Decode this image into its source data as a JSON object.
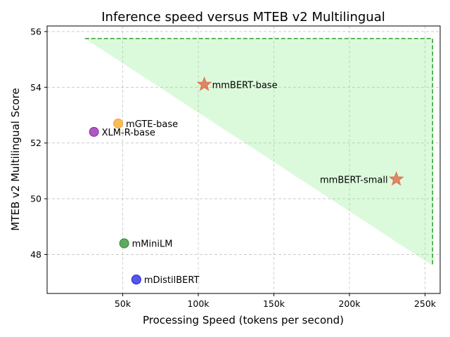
{
  "chart_data": {
    "type": "scatter",
    "title": "Inference speed versus MTEB v2 Multilingual",
    "xlabel": "Processing Speed (tokens per second)",
    "ylabel": "MTEB v2 Multilingual Score",
    "xlim": [
      0,
      260000
    ],
    "ylim": [
      46.6,
      56.2
    ],
    "xticks": [
      {
        "value": 50000,
        "label": "50k"
      },
      {
        "value": 100000,
        "label": "100k"
      },
      {
        "value": 150000,
        "label": "150k"
      },
      {
        "value": 200000,
        "label": "200k"
      },
      {
        "value": 250000,
        "label": "250k"
      }
    ],
    "yticks": [
      {
        "value": 48,
        "label": "48"
      },
      {
        "value": 50,
        "label": "50"
      },
      {
        "value": 52,
        "label": "52"
      },
      {
        "value": 54,
        "label": "54"
      },
      {
        "value": 56,
        "label": "56"
      }
    ],
    "grid": true,
    "points": [
      {
        "name": "mmBERT-base",
        "x": 104000,
        "y": 54.1,
        "color": "#e07050",
        "marker": "star",
        "label_side": "right"
      },
      {
        "name": "mmBERT-small",
        "x": 231000,
        "y": 50.7,
        "color": "#e07050",
        "marker": "star",
        "label_side": "left"
      },
      {
        "name": "mGTE-base",
        "x": 47000,
        "y": 52.7,
        "color": "#f5a623",
        "marker": "circle",
        "label_side": "right"
      },
      {
        "name": "XLM-R-base",
        "x": 31000,
        "y": 52.4,
        "color": "#8e24aa",
        "marker": "circle",
        "label_side": "right"
      },
      {
        "name": "mMiniLM",
        "x": 51000,
        "y": 48.4,
        "color": "#2e8b2e",
        "marker": "circle",
        "label_side": "right"
      },
      {
        "name": "mDistilBERT",
        "x": 59000,
        "y": 47.1,
        "color": "#1f1fe0",
        "marker": "circle",
        "label_side": "right"
      }
    ],
    "frontier_region": {
      "fill_color": "#90ee90",
      "line_color": "#2ca02c",
      "x_start": 25000,
      "x_end": 255000,
      "y_top": 55.75,
      "y_bottom": 47.6
    }
  }
}
